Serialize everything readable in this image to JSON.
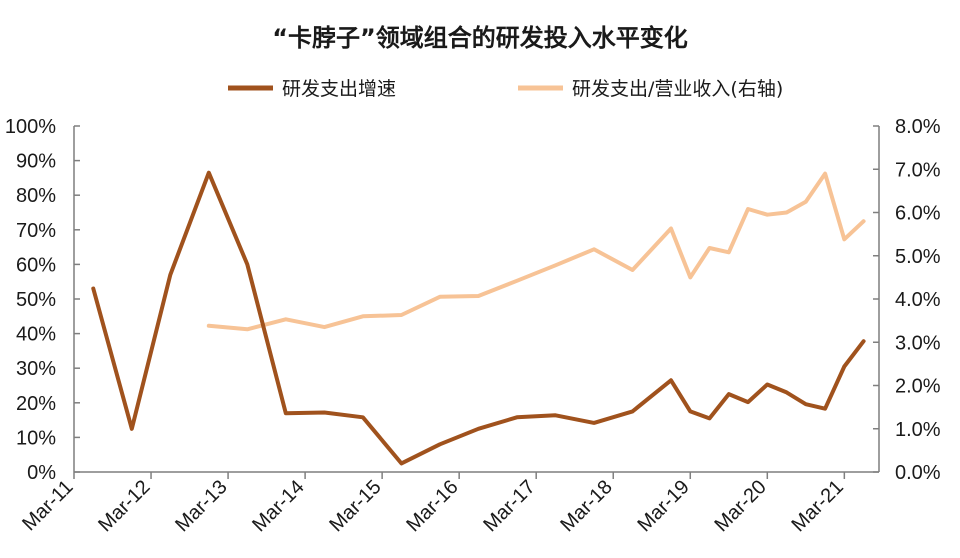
{
  "chart_data": {
    "type": "line",
    "title": "“卡脖子”领域组合的研发投入水平变化",
    "legend": {
      "placement": "top"
    },
    "grid": false,
    "x_categories": [
      "Mar-11",
      "Mar-12",
      "Mar-13",
      "Mar-14",
      "Mar-15",
      "Mar-16",
      "Mar-17",
      "Mar-18",
      "Mar-19",
      "Mar-20",
      "Mar-21"
    ],
    "y_left": {
      "range": [
        0,
        100
      ],
      "ticks": [
        "0%",
        "10%",
        "20%",
        "30%",
        "40%",
        "50%",
        "60%",
        "70%",
        "80%",
        "90%",
        "100%"
      ]
    },
    "y_right": {
      "range": [
        0,
        8
      ],
      "ticks": [
        "0.0%",
        "1.0%",
        "2.0%",
        "3.0%",
        "4.0%",
        "5.0%",
        "6.0%",
        "7.0%",
        "8.0%"
      ]
    },
    "series": [
      {
        "name": "研发支出增速",
        "axis": "left",
        "color": "#a0521d",
        "points": [
          [
            "2011-06",
            53
          ],
          [
            "2011-12",
            12.5
          ],
          [
            "2012-06",
            57
          ],
          [
            "2012-12",
            86.5
          ],
          [
            "2013-06",
            60
          ],
          [
            "2013-12",
            17
          ],
          [
            "2014-06",
            17.2
          ],
          [
            "2014-12",
            15.8
          ],
          [
            "2015-06",
            2.5
          ],
          [
            "2015-12",
            8
          ],
          [
            "2016-06",
            12.5
          ],
          [
            "2016-12",
            15.8
          ],
          [
            "2017-06",
            16.4
          ],
          [
            "2017-12",
            14.2
          ],
          [
            "2018-06",
            17.5
          ],
          [
            "2018-12",
            26.5
          ],
          [
            "2019-03",
            17.5
          ],
          [
            "2019-06",
            15.5
          ],
          [
            "2019-09",
            22.5
          ],
          [
            "2019-12",
            20.2
          ],
          [
            "2020-03",
            25.3
          ],
          [
            "2020-06",
            23
          ],
          [
            "2020-09",
            19.6
          ],
          [
            "2020-12",
            18.3
          ],
          [
            "2021-03",
            30.5
          ],
          [
            "2021-06",
            37.8
          ]
        ]
      },
      {
        "name": "研发支出/营业收入(右轴)",
        "axis": "right",
        "color": "#f7c396",
        "points": [
          [
            "2012-12",
            3.38
          ],
          [
            "2013-06",
            3.3
          ],
          [
            "2013-12",
            3.53
          ],
          [
            "2014-06",
            3.35
          ],
          [
            "2014-12",
            3.6
          ],
          [
            "2015-06",
            3.63
          ],
          [
            "2015-12",
            4.05
          ],
          [
            "2016-06",
            4.07
          ],
          [
            "2016-12",
            4.42
          ],
          [
            "2017-06",
            4.78
          ],
          [
            "2017-12",
            5.15
          ],
          [
            "2018-06",
            4.67
          ],
          [
            "2018-12",
            5.63
          ],
          [
            "2019-03",
            4.5
          ],
          [
            "2019-06",
            5.18
          ],
          [
            "2019-09",
            5.08
          ],
          [
            "2019-12",
            6.08
          ],
          [
            "2020-03",
            5.95
          ],
          [
            "2020-06",
            6.0
          ],
          [
            "2020-09",
            6.25
          ],
          [
            "2020-12",
            6.9
          ],
          [
            "2021-03",
            5.38
          ],
          [
            "2021-06",
            5.8
          ]
        ]
      }
    ]
  }
}
